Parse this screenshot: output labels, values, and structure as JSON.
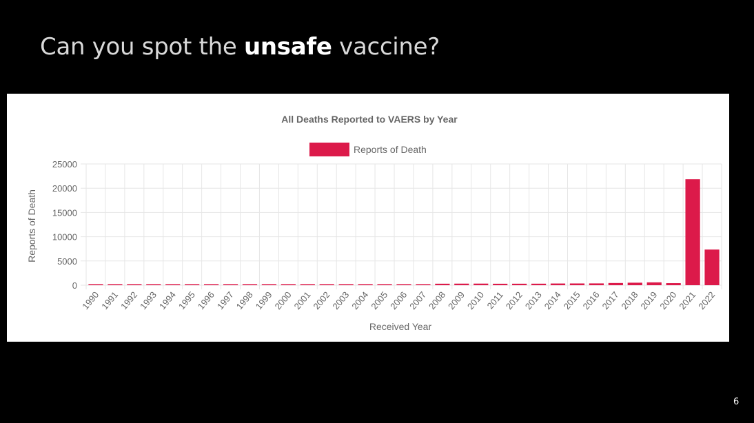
{
  "slide": {
    "title_pre": "Can you spot the ",
    "title_bold": "unsafe",
    "title_post": " vaccine?",
    "page_number": "6"
  },
  "colors": {
    "background": "#000000",
    "bar": "#dc1a4a",
    "grid": "#e6e6e6",
    "text": "#666666"
  },
  "chart_data": {
    "type": "bar",
    "title": "All Deaths Reported to VAERS by Year",
    "xlabel": "Received Year",
    "ylabel": "Reports of Death",
    "legend_position": "top",
    "grid": true,
    "ylim": [
      0,
      25000
    ],
    "yticks": [
      "25000",
      "20000",
      "15000",
      "10000",
      "5000",
      "0"
    ],
    "categories": [
      "1990",
      "1991",
      "1992",
      "1993",
      "1994",
      "1995",
      "1996",
      "1997",
      "1998",
      "1999",
      "2000",
      "2001",
      "2002",
      "2003",
      "2004",
      "2005",
      "2006",
      "2007",
      "2008",
      "2009",
      "2010",
      "2011",
      "2012",
      "2013",
      "2014",
      "2015",
      "2016",
      "2017",
      "2018",
      "2019",
      "2020",
      "2021",
      "2022"
    ],
    "series": [
      {
        "name": "Reports of Death",
        "values": [
          160,
          190,
          170,
          175,
          180,
          180,
          165,
          170,
          160,
          170,
          180,
          185,
          185,
          175,
          170,
          180,
          175,
          190,
          310,
          325,
          330,
          305,
          310,
          315,
          350,
          360,
          370,
          450,
          520,
          590,
          420,
          21850,
          7350
        ]
      }
    ]
  }
}
